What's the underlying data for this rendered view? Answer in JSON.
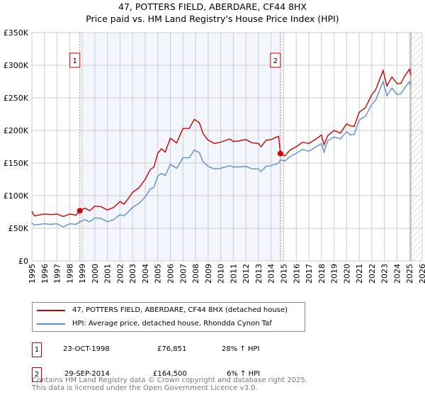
{
  "chart_data": {
    "type": "line",
    "title": "47, POTTERS FIELD, ABERDARE, CF44 8HX",
    "subtitle": "Price paid vs. HM Land Registry's House Price Index (HPI)",
    "xlim": [
      1995,
      2026
    ],
    "ylim": [
      0,
      350000
    ],
    "x_ticks": [
      "1995",
      "1996",
      "1997",
      "1998",
      "1999",
      "2000",
      "2001",
      "2002",
      "2003",
      "2004",
      "2005",
      "2006",
      "2007",
      "2008",
      "2009",
      "2010",
      "2011",
      "2012",
      "2013",
      "2014",
      "2015",
      "2016",
      "2017",
      "2018",
      "2019",
      "2020",
      "2021",
      "2022",
      "2023",
      "2024",
      "2025",
      "2026"
    ],
    "y_ticks": [
      {
        "v": 0,
        "label": "£0"
      },
      {
        "v": 50000,
        "label": "£50K"
      },
      {
        "v": 100000,
        "label": "£100K"
      },
      {
        "v": 150000,
        "label": "£150K"
      },
      {
        "v": 200000,
        "label": "£200K"
      },
      {
        "v": 250000,
        "label": "£250K"
      },
      {
        "v": 300000,
        "label": "£300K"
      },
      {
        "v": 350000,
        "label": "£350K"
      }
    ],
    "grid": true,
    "x": [
      1995.0,
      1995.2,
      1996,
      1996.5,
      1997,
      1997.5,
      1998,
      1998.5,
      1998.81,
      1999.2,
      1999.6,
      2000,
      2000.5,
      2001,
      2001.5,
      2002,
      2002.3,
      2002.6,
      2003,
      2003.5,
      2004,
      2004.4,
      2004.7,
      2005,
      2005.3,
      2005.6,
      2006,
      2006.5,
      2007,
      2007.5,
      2007.9,
      2008.3,
      2008.6,
      2009,
      2009.5,
      2010,
      2010.7,
      2011,
      2011.5,
      2012,
      2012.5,
      2013,
      2013.2,
      2013.6,
      2014,
      2014.6,
      2014.74,
      2015.1,
      2015.5,
      2016,
      2016.5,
      2017,
      2017.5,
      2018,
      2018.2,
      2018.5,
      2019,
      2019.5,
      2020,
      2020.3,
      2020.6,
      2021,
      2021.5,
      2022,
      2022.3,
      2022.9,
      2023.2,
      2023.6,
      2024,
      2024.3,
      2024.6,
      2025,
      2025.1
    ],
    "series": [
      {
        "name": "47, POTTERS FIELD, ABERDARE, CF44 8HX (detached house)",
        "color": "#cc0000",
        "values": [
          76000,
          69000,
          72000,
          71000,
          72000,
          68000,
          72000,
          70000,
          76851,
          81000,
          77000,
          84000,
          83000,
          78000,
          82000,
          91000,
          87000,
          94000,
          105000,
          112000,
          125000,
          140000,
          144000,
          165000,
          172000,
          167000,
          188000,
          181000,
          203000,
          203000,
          217000,
          212000,
          195000,
          185000,
          180000,
          182000,
          187000,
          183000,
          184000,
          186000,
          181000,
          180000,
          175000,
          185000,
          186000,
          191000,
          164500,
          161000,
          170000,
          175000,
          182000,
          180000,
          186000,
          193000,
          178000,
          192000,
          200000,
          196000,
          210000,
          207000,
          206000,
          228000,
          235000,
          255000,
          262000,
          292000,
          268000,
          282000,
          272000,
          272000,
          283000,
          294000,
          285000
        ]
      },
      {
        "name": "HPI: Average price, detached house, Rhondda Cynon Taf",
        "color": "#5b8fd0",
        "values": [
          58000,
          55000,
          57000,
          56000,
          57000,
          52000,
          57000,
          56000,
          60000,
          63000,
          60000,
          66000,
          65000,
          60000,
          63000,
          71000,
          69000,
          74000,
          82000,
          88000,
          98000,
          110000,
          113000,
          130000,
          134000,
          131000,
          148000,
          142000,
          158000,
          158000,
          170000,
          166000,
          152000,
          145000,
          141000,
          142000,
          146000,
          144000,
          144000,
          145000,
          141000,
          141000,
          137000,
          145000,
          146000,
          150000,
          155000,
          153000,
          160000,
          165000,
          171000,
          168000,
          174000,
          180000,
          167000,
          184000,
          190000,
          187000,
          198000,
          193000,
          194000,
          216000,
          222000,
          240000,
          246000,
          275000,
          253000,
          265000,
          255000,
          256000,
          265000,
          275000,
          268000
        ]
      }
    ],
    "sales": [
      {
        "label": "1",
        "x": 1998.81,
        "value": 76851
      },
      {
        "label": "2",
        "x": 2014.74,
        "value": 164500
      }
    ],
    "shaded_range": [
      1999.0,
      2015.0
    ],
    "hatched_from": 2025.1
  },
  "legend": {
    "items": [
      {
        "label": "47, POTTERS FIELD, ABERDARE, CF44 8HX (detached house)",
        "color": "#cc0000"
      },
      {
        "label": "HPI: Average price, detached house, Rhondda Cynon Taf",
        "color": "#5b8fd0"
      }
    ]
  },
  "transactions": [
    {
      "num": "1",
      "date": "23-OCT-1998",
      "price": "£76,851",
      "hpi": "28% ↑ HPI"
    },
    {
      "num": "2",
      "date": "29-SEP-2014",
      "price": "£164,500",
      "hpi": "6% ↑ HPI"
    }
  ],
  "footer": {
    "line1": "Contains HM Land Registry data © Crown copyright and database right 2025.",
    "line2": "This data is licensed under the Open Government Licence v3.0."
  }
}
